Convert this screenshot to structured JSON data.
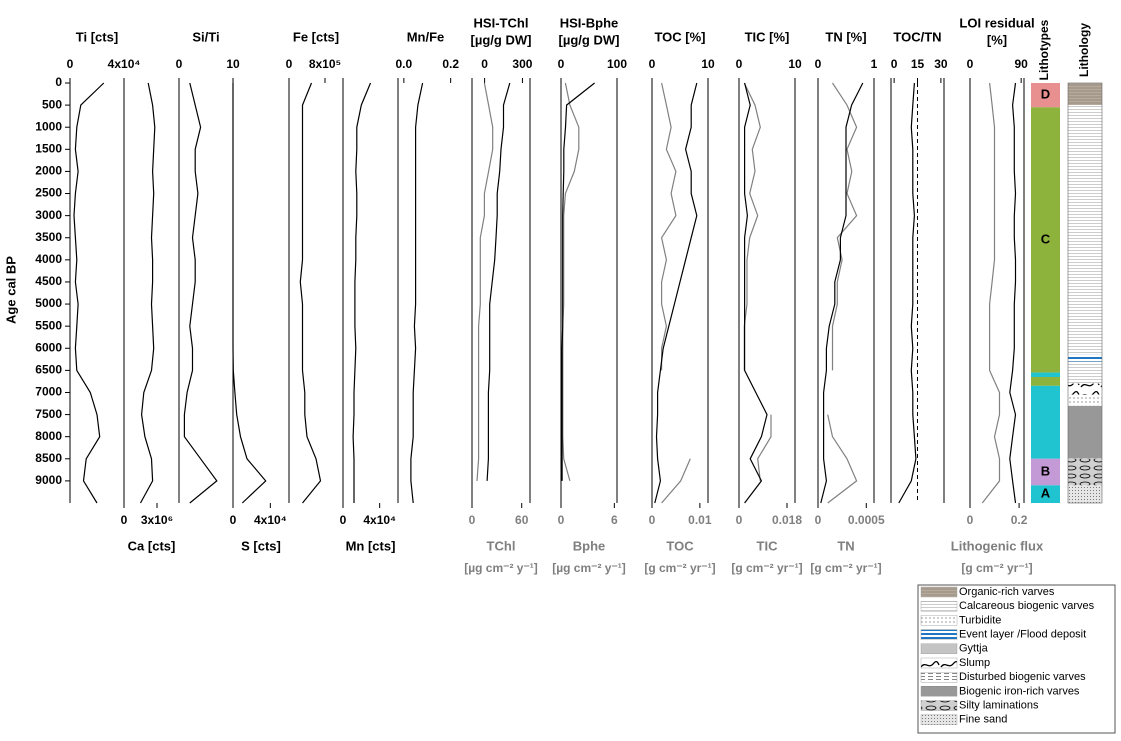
{
  "chart_data": {
    "type": "multi-panel",
    "ylabel": "Age cal BP",
    "ylim": [
      0,
      9500
    ],
    "yticks": [
      0,
      500,
      1000,
      1500,
      2000,
      2500,
      3000,
      3500,
      4000,
      4500,
      5000,
      5500,
      6000,
      6500,
      7000,
      7500,
      8000,
      8500,
      9000
    ],
    "ages": [
      0,
      500,
      1000,
      1500,
      2000,
      2500,
      3000,
      3500,
      4000,
      4500,
      5000,
      5500,
      6000,
      6500,
      7000,
      7500,
      8000,
      8500,
      9000,
      9500
    ],
    "panels": [
      {
        "type": "line",
        "top_label": "Ti [cts]",
        "top_xlim": [
          0,
          40000
        ],
        "top_xticks": [
          0,
          {
            "value": 40000,
            "label": "4x10⁴"
          }
        ],
        "series": [
          {
            "color": "#000000",
            "axis": "top",
            "values": [
              25000,
              8000,
              5000,
              4000,
              6000,
              4000,
              3000,
              4000,
              5000,
              4000,
              6000,
              5000,
              4000,
              5000,
              15000,
              20000,
              22000,
              12000,
              10000,
              20000
            ]
          }
        ]
      },
      {
        "type": "line",
        "bottom_label": "Ca [cts]",
        "bottom_xlim": [
          0,
          5000000
        ],
        "bottom_xticks": [
          0,
          {
            "value": 3000000,
            "label": "3x10⁶"
          }
        ],
        "series": [
          {
            "color": "#000000",
            "axis": "bottom",
            "values": [
              2200000,
              2600000,
              2800000,
              2700000,
              2600000,
              2700000,
              2600000,
              2500000,
              2600000,
              2600000,
              2500000,
              2600000,
              2700000,
              2500000,
              1800000,
              1600000,
              1900000,
              2500000,
              2600000,
              1500000
            ]
          }
        ]
      },
      {
        "type": "line",
        "top_label": "Si/Ti",
        "top_xlim": [
          0,
          10
        ],
        "top_xticks": [
          0,
          10
        ],
        "series": [
          {
            "color": "#000000",
            "axis": "top",
            "values": [
              2,
              3,
              4,
              3,
              3,
              3.5,
              3,
              2.5,
              3,
              3,
              2.5,
              2,
              2.5,
              2.5,
              1.5,
              1,
              1,
              4,
              7,
              2
            ]
          }
        ]
      },
      {
        "type": "line",
        "bottom_label": "S [cts]",
        "bottom_xlim": [
          0,
          60000
        ],
        "bottom_xticks": [
          0,
          {
            "value": 40000,
            "label": "4x10⁴"
          }
        ],
        "series": [
          {
            "color": "#000000",
            "axis": "bottom",
            "values": [
              0,
              0,
              0,
              0,
              0,
              0,
              0,
              0,
              0,
              0,
              0,
              0,
              0,
              300,
              2000,
              4000,
              8000,
              15000,
              35000,
              10000
            ]
          }
        ]
      },
      {
        "type": "line",
        "top_label": "Fe [cts]",
        "top_xlim": [
          0,
          1200000
        ],
        "top_xticks": [
          0,
          {
            "value": 800000,
            "label": "8x10⁵"
          }
        ],
        "series": [
          {
            "color": "#000000",
            "axis": "top",
            "values": [
              500000,
              300000,
              300000,
              300000,
              300000,
              300000,
              300000,
              300000,
              300000,
              250000,
              300000,
              300000,
              300000,
              300000,
              350000,
              350000,
              400000,
              600000,
              700000,
              300000
            ]
          }
        ]
      },
      {
        "type": "line",
        "bottom_label": "Mn [cts]",
        "bottom_xlim": [
          0,
          60000
        ],
        "bottom_xticks": [
          0,
          {
            "value": 40000,
            "label": "4x10⁴"
          }
        ],
        "series": [
          {
            "color": "#000000",
            "axis": "bottom",
            "values": [
              30000,
              20000,
              15000,
              15000,
              14000,
              15000,
              15000,
              14000,
              14000,
              13000,
              13000,
              13000,
              14000,
              13000,
              12000,
              12000,
              11000,
              12000,
              12000,
              12000
            ]
          }
        ]
      },
      {
        "type": "line",
        "top_label": "Mn/Fe",
        "top_xlim": [
          -0.025,
          0.21
        ],
        "top_xticks": [
          {
            "value": 0,
            "label": "0.0"
          },
          0.2
        ],
        "series": [
          {
            "color": "#000000",
            "axis": "top",
            "values": [
              0.08,
              0.06,
              0.05,
              0.05,
              0.05,
              0.05,
              0.05,
              0.05,
              0.05,
              0.05,
              0.05,
              0.045,
              0.05,
              0.045,
              0.04,
              0.04,
              0.04,
              0.03,
              0.03,
              0.04
            ]
          }
        ]
      },
      {
        "type": "line",
        "top_label": [
          "HSI-TChl",
          "[µg/g DW]"
        ],
        "top_xlim": [
          -100,
          360
        ],
        "top_xticks": [
          0,
          300
        ],
        "bottom_label": "TChl",
        "bottom_unit": "[µg cm⁻² y⁻¹]",
        "bottom_xlim": [
          0,
          70
        ],
        "bottom_xticks": [
          0,
          60
        ],
        "series": [
          {
            "color": "#808080",
            "axis": "bottom",
            "values": [
              15,
              20,
              25,
              25,
              20,
              15,
              15,
              10,
              10,
              10,
              10,
              8,
              8,
              8,
              8,
              8,
              8,
              8,
              6,
              null
            ]
          },
          {
            "color": "#000000",
            "axis": "top",
            "values": [
              200,
              150,
              150,
              130,
              120,
              100,
              100,
              90,
              80,
              60,
              40,
              40,
              40,
              40,
              30,
              30,
              30,
              30,
              20,
              null
            ]
          }
        ]
      },
      {
        "type": "line",
        "top_label": [
          "HSI-Bphe",
          "[µg/g DW]"
        ],
        "top_xlim": [
          0,
          100
        ],
        "top_xticks": [
          0,
          100
        ],
        "bottom_label": "Bphe",
        "bottom_unit": "[µg cm⁻² y⁻¹]",
        "bottom_xlim": [
          0,
          6.3
        ],
        "bottom_xticks": [
          0,
          6
        ],
        "series": [
          {
            "color": "#808080",
            "axis": "bottom",
            "values": [
              0.5,
              1,
              2,
              2,
              1.5,
              0.5,
              0.3,
              0.3,
              0.3,
              0.3,
              0.3,
              0.2,
              0.2,
              0.2,
              0.2,
              0.2,
              0.2,
              0.3,
              1,
              null
            ]
          },
          {
            "color": "#000000",
            "axis": "top",
            "values": [
              60,
              10,
              8,
              5,
              5,
              4,
              3,
              3,
              3,
              3,
              3,
              3,
              2,
              2,
              2,
              2,
              2,
              2,
              2,
              null
            ]
          }
        ]
      },
      {
        "type": "line",
        "top_label": "TOC [%]",
        "top_xlim": [
          0,
          10
        ],
        "top_xticks": [
          0,
          10
        ],
        "bottom_label": "TOC",
        "bottom_unit": "[g cm⁻² yr⁻¹]",
        "bottom_xlim": [
          0,
          0.0117
        ],
        "bottom_xticks": [
          0,
          0.01
        ],
        "series": [
          {
            "color": "#808080",
            "axis": "bottom",
            "values": [
              0.002,
              0.003,
              0.004,
              0.003,
              0.005,
              0.004,
              0.005,
              0.002,
              0.003,
              0.002,
              0.002,
              0.003,
              0.002,
              0.002,
              null,
              null,
              null,
              0.008,
              0.006,
              0.002
            ]
          },
          {
            "color": "#000000",
            "axis": "top",
            "values": [
              8,
              7,
              7,
              6,
              7,
              7,
              8,
              7,
              6,
              5,
              4,
              3,
              2,
              1.5,
              1,
              1,
              0.8,
              1,
              1.5,
              0.5
            ]
          }
        ]
      },
      {
        "type": "line",
        "top_label": "TIC [%]",
        "top_xlim": [
          0,
          10
        ],
        "top_xticks": [
          0,
          10
        ],
        "bottom_label": "TIC",
        "bottom_unit": "[g cm⁻² yr⁻¹]",
        "bottom_xlim": [
          0,
          0.021
        ],
        "bottom_xticks": [
          0,
          0.018
        ],
        "series": [
          {
            "color": "#808080",
            "axis": "bottom",
            "values": [
              0.002,
              0.006,
              0.008,
              0.005,
              0.006,
              0.004,
              0.007,
              0.004,
              0.003,
              0.003,
              0.003,
              0.002,
              0.002,
              0.002,
              null,
              0.012,
              0.012,
              0.007,
              0.008,
              null
            ]
          },
          {
            "color": "#000000",
            "axis": "top",
            "values": [
              1,
              2,
              1,
              1,
              1,
              1,
              1.5,
              1,
              1,
              1,
              1,
              1,
              1,
              1,
              3,
              5,
              4,
              2,
              4,
              1
            ]
          }
        ]
      },
      {
        "type": "line",
        "top_label": "TN [%]",
        "top_xlim": [
          0,
          1
        ],
        "top_xticks": [
          0,
          1
        ],
        "bottom_label": "TN",
        "bottom_unit": "[g cm⁻² yr⁻¹]",
        "bottom_xlim": [
          0,
          0.00058
        ],
        "bottom_xticks": [
          0,
          0.0005
        ],
        "series": [
          {
            "color": "#808080",
            "axis": "bottom",
            "values": [
              0.00015,
              0.0003,
              0.0004,
              0.0003,
              0.00035,
              0.0003,
              0.0004,
              0.0002,
              0.00025,
              0.0002,
              0.0002,
              0.00015,
              0.00015,
              0.00015,
              null,
              0.0001,
              0.00015,
              0.0003,
              0.0004,
              0.0001
            ]
          },
          {
            "color": "#000000",
            "axis": "top",
            "values": [
              0.8,
              0.6,
              0.5,
              0.5,
              0.5,
              0.5,
              0.5,
              0.4,
              0.4,
              0.3,
              0.3,
              0.2,
              0.15,
              0.15,
              0.1,
              0.1,
              0.1,
              0.1,
              0.15,
              0.05
            ]
          }
        ]
      },
      {
        "type": "line",
        "top_label": "TOC/TN",
        "top_xlim": [
          -2,
          32
        ],
        "top_xticks": [
          0,
          15,
          30
        ],
        "reference_line": 15,
        "series": [
          {
            "color": "#000000",
            "axis": "top",
            "values": [
              13,
              12,
              11,
              12,
              12,
              12,
              13,
              12,
              12,
              12,
              12,
              11,
              12,
              11,
              12,
              12,
              13,
              14,
              11,
              3
            ]
          }
        ]
      },
      {
        "type": "line",
        "top_label": [
          "LOI residual",
          "[%]"
        ],
        "top_xlim": [
          0,
          95
        ],
        "top_xticks": [
          0,
          90
        ],
        "bottom_label": "Lithogenic flux",
        "bottom_unit": "[g cm⁻² yr⁻¹]",
        "bottom_xlim": [
          0,
          0.22
        ],
        "bottom_xticks": [
          0,
          0.2
        ],
        "series": [
          {
            "color": "#808080",
            "axis": "bottom",
            "values": [
              0.08,
              0.09,
              0.1,
              0.1,
              0.1,
              0.1,
              0.1,
              0.1,
              0.1,
              0.09,
              0.08,
              0.08,
              0.08,
              0.08,
              0.12,
              0.12,
              0.1,
              0.12,
              0.12,
              0.05
            ]
          },
          {
            "color": "#000000",
            "axis": "top",
            "values": [
              80,
              75,
              78,
              78,
              78,
              80,
              78,
              78,
              80,
              80,
              78,
              78,
              78,
              75,
              70,
              80,
              75,
              70,
              75,
              80
            ]
          }
        ]
      }
    ],
    "lithotypes": {
      "title": "Lithotypes",
      "segments": [
        {
          "label": "D",
          "from": 0,
          "to": 550,
          "color": "#e8908f"
        },
        {
          "label": "C",
          "from": 550,
          "to": 6550,
          "color": "#8db33c"
        },
        {
          "from": 6550,
          "to": 6650,
          "color": "#20c4d0"
        },
        {
          "from": 6650,
          "to": 6850,
          "color": "#8db33c"
        },
        {
          "from": 6850,
          "to": 8500,
          "color": "#20c4d0"
        },
        {
          "label": "B",
          "from": 8500,
          "to": 9100,
          "color": "#c39ad6"
        },
        {
          "label": "A",
          "from": 9100,
          "to": 9500,
          "color": "#20c4d0"
        }
      ]
    },
    "lithology": {
      "title": "Lithology",
      "segments": [
        {
          "from": 0,
          "to": 500,
          "pattern": 0
        },
        {
          "from": 500,
          "to": 6150,
          "pattern": 1
        },
        {
          "from": 6150,
          "to": 6300,
          "pattern": 3
        },
        {
          "from": 6300,
          "to": 6800,
          "pattern": 1
        },
        {
          "from": 6800,
          "to": 7050,
          "pattern": 5
        },
        {
          "from": 7050,
          "to": 7300,
          "pattern": 2
        },
        {
          "from": 7300,
          "to": 8500,
          "pattern": 7
        },
        {
          "from": 8500,
          "to": 9100,
          "pattern": 8
        },
        {
          "from": 9100,
          "to": 9500,
          "pattern": 9
        }
      ]
    },
    "legend": [
      "Organic-rich varves",
      "Calcareous biogenic varves",
      "Turbidite",
      "Event layer /Flood deposit",
      "Gyttja",
      "Slump",
      "Disturbed biogenic varves",
      "Biogenic iron-rich varves",
      "Silty laminations",
      "Fine sand"
    ]
  }
}
